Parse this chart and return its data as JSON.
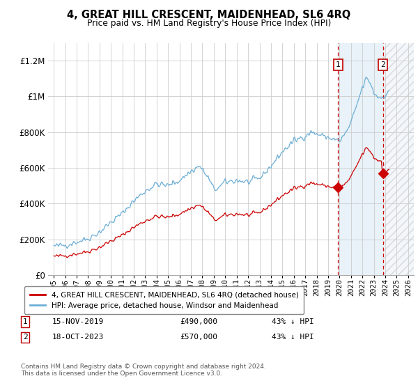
{
  "title": "4, GREAT HILL CRESCENT, MAIDENHEAD, SL6 4RQ",
  "subtitle": "Price paid vs. HM Land Registry's House Price Index (HPI)",
  "ylim": [
    0,
    1300000
  ],
  "yticks": [
    0,
    200000,
    400000,
    600000,
    800000,
    1000000,
    1200000
  ],
  "ytick_labels": [
    "£0",
    "£200K",
    "£400K",
    "£600K",
    "£800K",
    "£1M",
    "£1.2M"
  ],
  "hpi_color": "#6baed6",
  "price_color": "#cc0000",
  "sale1_date": 2019.88,
  "sale1_price": 490000,
  "sale2_date": 2023.79,
  "sale2_price": 570000,
  "legend_line1": "4, GREAT HILL CRESCENT, MAIDENHEAD, SL6 4RQ (detached house)",
  "legend_line2": "HPI: Average price, detached house, Windsor and Maidenhead",
  "note1_date": "15-NOV-2019",
  "note1_price": "£490,000",
  "note1_pct": "43% ↓ HPI",
  "note2_date": "18-OCT-2023",
  "note2_price": "£570,000",
  "note2_pct": "43% ↓ HPI",
  "footer": "Contains HM Land Registry data © Crown copyright and database right 2024.\nThis data is licensed under the Open Government Licence v3.0.",
  "xmin": 1994.5,
  "xmax": 2026.5
}
